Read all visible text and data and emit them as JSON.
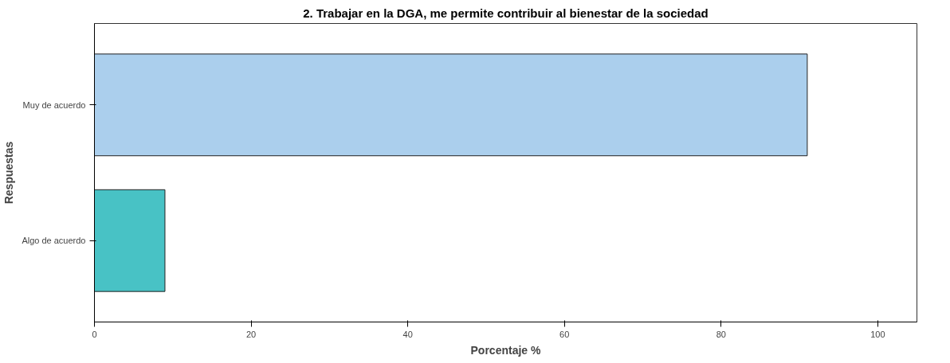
{
  "chart_data": {
    "type": "bar",
    "orientation": "horizontal",
    "title": "2. Trabajar en la DGA, me permite contribuir al bienestar de la sociedad",
    "xlabel": "Porcentaje %",
    "ylabel": "Respuestas",
    "categories": [
      "Muy de acuerdo",
      "Algo de acuerdo"
    ],
    "values": [
      91,
      9
    ],
    "colors": [
      "#abcfed",
      "#48c2c5"
    ],
    "xlim": [
      0,
      105
    ],
    "xticks": [
      0,
      20,
      40,
      60,
      80,
      100
    ],
    "grid": false
  }
}
